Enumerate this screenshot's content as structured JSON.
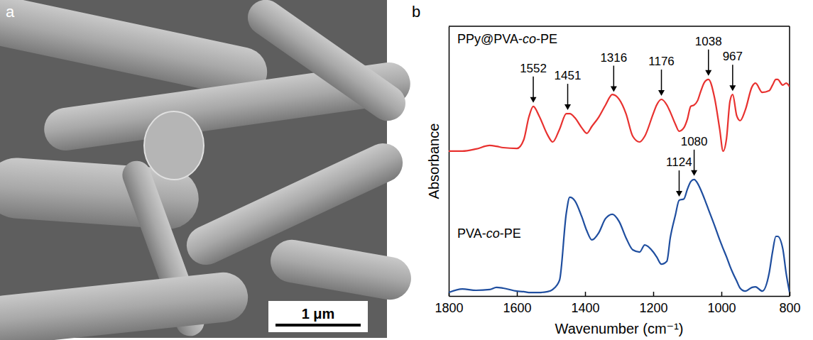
{
  "image_panel": {
    "label": "a",
    "scale_bar": "1 μm"
  },
  "chart_data": {
    "type": "line",
    "panel_label": "b",
    "x_label": "Wavenumber (cm⁻¹)",
    "y_label": "Absorbance",
    "xlim": [
      1800,
      800
    ],
    "xticks": [
      1800,
      1600,
      1400,
      1200,
      1000,
      800
    ],
    "ylim": [
      0,
      100
    ],
    "yticks": [],
    "tick_labels": "x",
    "x": [
      1800,
      1760,
      1720,
      1680,
      1660,
      1640,
      1600,
      1580,
      1565,
      1552,
      1535,
      1510,
      1495,
      1475,
      1455,
      1445,
      1430,
      1410,
      1395,
      1380,
      1360,
      1340,
      1320,
      1300,
      1280,
      1260,
      1240,
      1225,
      1200,
      1190,
      1176,
      1160,
      1150,
      1135,
      1124,
      1110,
      1100,
      1090,
      1080,
      1070,
      1060,
      1050,
      1038,
      1020,
      1005,
      995,
      985,
      975,
      967,
      955,
      945,
      930,
      910,
      900,
      880,
      860,
      850,
      840,
      835,
      820,
      810,
      800
    ],
    "series": [
      {
        "name": "PPy@PVA-co-PE",
        "color": "#e8312f",
        "values": [
          53.7,
          53.7,
          54.5,
          55.8,
          55.5,
          55.0,
          54.7,
          57.9,
          66.3,
          70.3,
          66.8,
          59.7,
          57.1,
          61.8,
          67.6,
          67.6,
          66.1,
          62.4,
          60.3,
          62.9,
          66.3,
          70.8,
          74.7,
          72.9,
          67.6,
          59.2,
          57.1,
          59.2,
          67.6,
          70.8,
          72.9,
          70.8,
          68.2,
          63.7,
          61.1,
          62.4,
          65.5,
          70.3,
          70.8,
          72.4,
          76.1,
          79.2,
          80.3,
          73.4,
          61.8,
          53.7,
          58.4,
          72.1,
          74.7,
          66.8,
          65.0,
          68.9,
          77.6,
          78.9,
          75.5,
          76.1,
          78.2,
          80.3,
          80.3,
          78.2,
          78.9,
          77.6
        ],
        "peaks": [
          1552,
          1451,
          1316,
          1176,
          1038,
          967
        ]
      },
      {
        "name": "PVA-co-PE",
        "color": "#1f4e9f",
        "values": [
          1.3,
          2.6,
          2.1,
          2.4,
          3.2,
          2.9,
          1.8,
          1.6,
          1.3,
          1.3,
          1.3,
          1.6,
          2.4,
          5.8,
          30.8,
          36.6,
          35.3,
          29.5,
          24.2,
          20.8,
          23.4,
          28.7,
          30.3,
          27.6,
          21.6,
          17.1,
          16.3,
          18.9,
          16.3,
          14.5,
          11.8,
          12.9,
          21.6,
          30.0,
          35.5,
          36.0,
          39.5,
          42.4,
          43.2,
          41.8,
          39.2,
          36.1,
          32.1,
          26.1,
          20.8,
          17.6,
          14.5,
          11.1,
          8.7,
          5.5,
          2.9,
          1.8,
          3.2,
          3.4,
          1.8,
          8.4,
          16.3,
          22.1,
          22.1,
          17.6,
          8.4,
          1.3
        ],
        "peaks": [
          1124,
          1080
        ]
      }
    ]
  }
}
